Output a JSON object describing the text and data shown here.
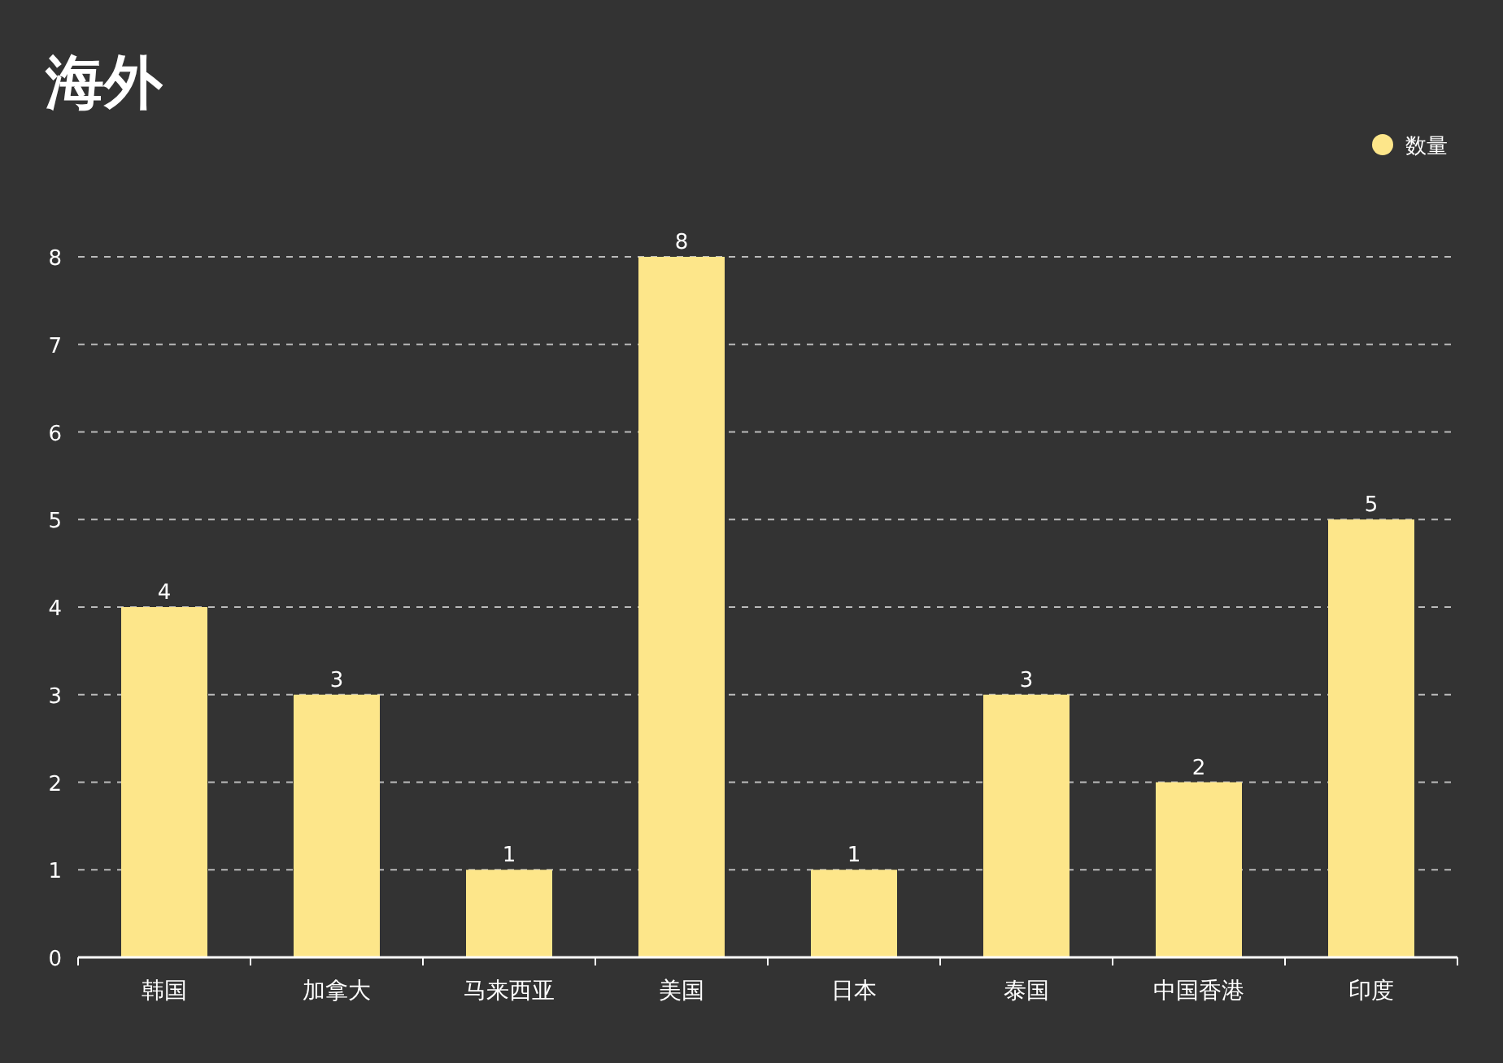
{
  "chart_data": {
    "type": "bar",
    "title": "海外",
    "categories": [
      "韩国",
      "加拿大",
      "马来西亚",
      "美国",
      "日本",
      "泰国",
      "中国香港",
      "印度"
    ],
    "series": [
      {
        "name": "数量",
        "color": "#fde68a",
        "values": [
          4,
          3,
          1,
          8,
          1,
          3,
          2,
          5
        ]
      }
    ],
    "ylim": [
      0,
      8
    ],
    "yticks": [
      0,
      1,
      2,
      3,
      4,
      5,
      6,
      7,
      8
    ],
    "grid": "y",
    "legend": "top right",
    "data_labels": true
  }
}
